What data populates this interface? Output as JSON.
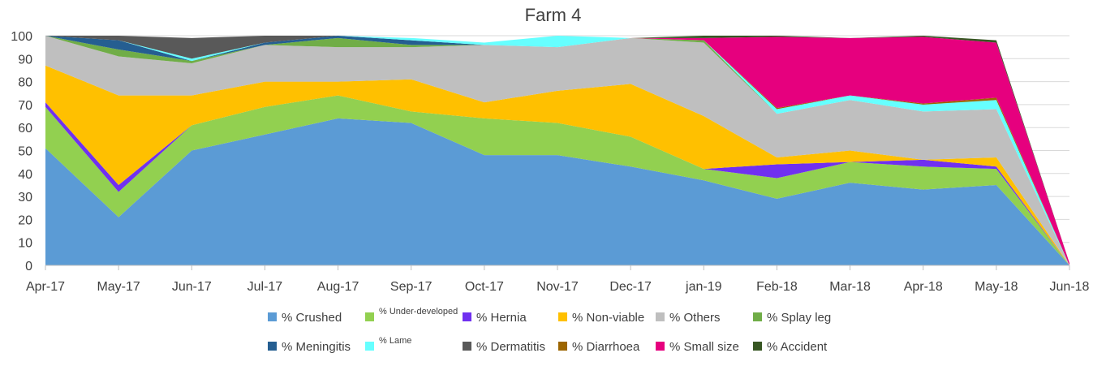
{
  "chart_data": {
    "type": "area",
    "stacked": true,
    "title": "Farm 4",
    "xlabel": "",
    "ylabel": "",
    "ylim": [
      0,
      100
    ],
    "yticks": [
      0,
      10,
      20,
      30,
      40,
      50,
      60,
      70,
      80,
      90,
      100
    ],
    "grid": true,
    "legend_position": "bottom",
    "categories": [
      "Apr-17",
      "May-17",
      "Jun-17",
      "Jul-17",
      "Aug-17",
      "Sep-17",
      "Oct-17",
      "Nov-17",
      "Dec-17",
      "jan-19",
      "Feb-18",
      "Mar-18",
      "Apr-18",
      "May-18",
      "Jun-18"
    ],
    "series": [
      {
        "name": "% Crushed",
        "color": "#5b9bd5",
        "values": [
          51,
          21,
          50,
          57,
          64,
          62,
          48,
          48,
          43,
          37,
          29,
          36,
          33,
          35,
          0
        ]
      },
      {
        "name": "% Under-developed",
        "color": "#92d050",
        "values": [
          18,
          11,
          11,
          12,
          10,
          5,
          16,
          14,
          13,
          5,
          9,
          9,
          10,
          7,
          0
        ]
      },
      {
        "name": "% Hernia",
        "color": "#7030f0",
        "values": [
          2,
          3,
          0,
          0,
          0,
          0,
          0,
          0,
          0,
          0,
          6,
          0,
          3,
          1,
          0
        ]
      },
      {
        "name": "% Non-viable",
        "color": "#ffc000",
        "values": [
          16,
          39,
          13,
          11,
          6,
          14,
          7,
          14,
          23,
          23,
          3,
          5,
          0,
          4,
          0
        ]
      },
      {
        "name": "% Others",
        "color": "#bfbfbf",
        "values": [
          13,
          17,
          14,
          16,
          15,
          14,
          25,
          19,
          20,
          32,
          19,
          22,
          21,
          21,
          0
        ]
      },
      {
        "name": "% Splay leg",
        "color": "#70ad47",
        "values": [
          0,
          3,
          1,
          0,
          4,
          1,
          0,
          0,
          0,
          1,
          0,
          0,
          0,
          0,
          0
        ]
      },
      {
        "name": "% Meningitis",
        "color": "#255e91",
        "values": [
          0,
          4,
          0,
          1,
          1,
          2,
          0,
          0,
          0,
          0,
          0,
          0,
          0,
          0,
          0
        ]
      },
      {
        "name": "% Lame",
        "color": "#66ffff",
        "values": [
          0,
          0,
          1,
          0,
          0,
          1,
          1,
          5,
          0,
          0,
          2,
          2,
          3,
          4,
          0
        ]
      },
      {
        "name": "% Dermatitis",
        "color": "#595959",
        "values": [
          0,
          2,
          9,
          3,
          0,
          0,
          0,
          0,
          0,
          0,
          0,
          0,
          0,
          0,
          0
        ]
      },
      {
        "name": "% Diarrhoea",
        "color": "#9c6500",
        "values": [
          0,
          0,
          0,
          0,
          0,
          0,
          0,
          0,
          0,
          0,
          0.5,
          0,
          0.5,
          1,
          0
        ]
      },
      {
        "name": "% Small size",
        "color": "#e6007e",
        "values": [
          0,
          0,
          0,
          0,
          0,
          0,
          0,
          0,
          0,
          1,
          31,
          25,
          29,
          24,
          1
        ]
      },
      {
        "name": "% Accident",
        "color": "#375623",
        "values": [
          0,
          0,
          0,
          0,
          0,
          0,
          0,
          0,
          0,
          1,
          0.5,
          0,
          0.5,
          1,
          0
        ]
      }
    ]
  }
}
